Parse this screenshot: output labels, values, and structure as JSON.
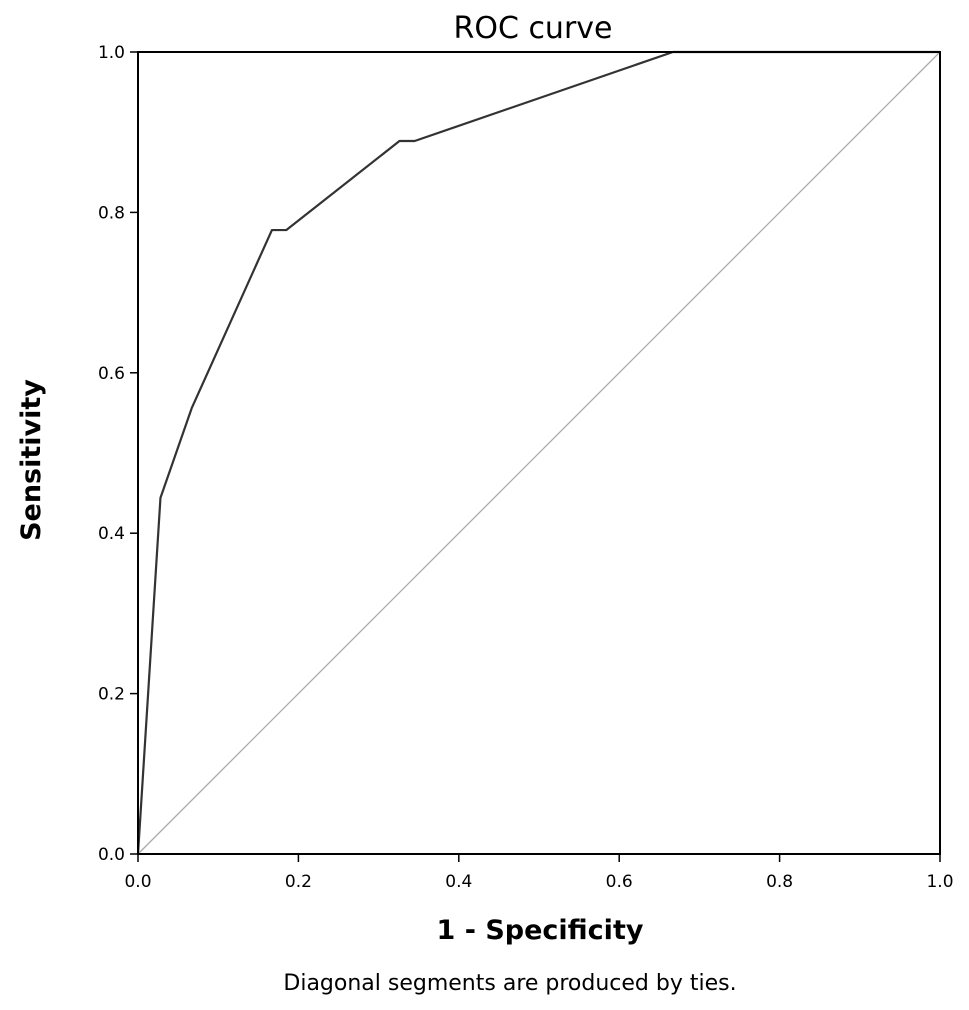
{
  "chart_data": {
    "type": "line",
    "title": "ROC curve",
    "xlabel": "1 - Specificity",
    "ylabel": "Sensitivity",
    "footnote": "Diagonal segments are produced by ties.",
    "xlim": [
      0.0,
      1.0
    ],
    "ylim": [
      0.0,
      1.0
    ],
    "xticks": [
      "0.0",
      "0.2",
      "0.4",
      "0.6",
      "0.8",
      "1.0"
    ],
    "yticks": [
      "0.0",
      "0.2",
      "0.4",
      "0.6",
      "0.8",
      "1.0"
    ],
    "grid": false,
    "series": [
      {
        "role": "roc",
        "color": "#333333",
        "x": [
          0.0,
          0.028,
          0.067,
          0.167,
          0.185,
          0.326,
          0.345,
          0.667,
          1.0
        ],
        "y": [
          0.0,
          0.444,
          0.556,
          0.778,
          0.778,
          0.889,
          0.889,
          1.0,
          1.0
        ]
      },
      {
        "role": "reference",
        "color": "#aaaaaa",
        "x": [
          0.0,
          1.0
        ],
        "y": [
          0.0,
          1.0
        ]
      }
    ]
  }
}
